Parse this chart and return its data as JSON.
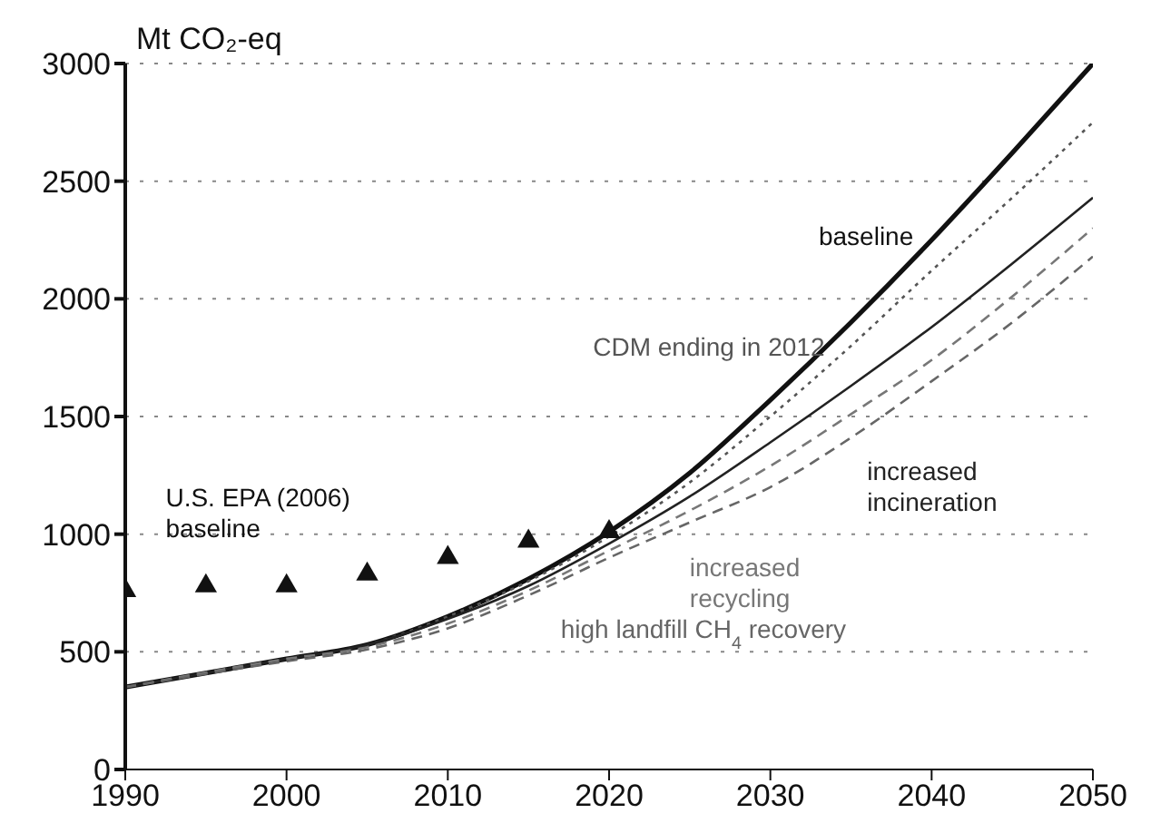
{
  "chart_data": {
    "type": "line",
    "ylabel": "Mt CO₂-eq",
    "xlim": [
      1990,
      2050
    ],
    "xticks": [
      1990,
      2000,
      2010,
      2020,
      2030,
      2040,
      2050
    ],
    "ylim": [
      0,
      3000
    ],
    "yticks": [
      0,
      500,
      1000,
      1500,
      2000,
      2500,
      3000
    ],
    "grid": "y",
    "series": [
      {
        "name": "baseline",
        "color": "#111111",
        "line_style": "solid",
        "marker": "none",
        "x": [
          1990,
          2000,
          2005,
          2010,
          2015,
          2020,
          2025,
          2030,
          2035,
          2040,
          2045,
          2050
        ],
        "values": [
          350,
          470,
          530,
          650,
          810,
          1010,
          1260,
          1570,
          1900,
          2250,
          2620,
          3000
        ]
      },
      {
        "name": "CDM ending in 2012",
        "color": "#555555",
        "line_style": "dotted",
        "marker": "none",
        "x": [
          1990,
          2000,
          2005,
          2010,
          2015,
          2020,
          2025,
          2030,
          2035,
          2040,
          2045,
          2050
        ],
        "values": [
          350,
          470,
          530,
          650,
          800,
          990,
          1220,
          1500,
          1800,
          2120,
          2430,
          2750
        ]
      },
      {
        "name": "increased incineration",
        "color": "#222222",
        "line_style": "solid",
        "marker": "none",
        "x": [
          1990,
          2000,
          2005,
          2010,
          2015,
          2020,
          2025,
          2030,
          2035,
          2040,
          2045,
          2050
        ],
        "values": [
          350,
          470,
          530,
          640,
          780,
          960,
          1160,
          1390,
          1630,
          1880,
          2150,
          2430
        ]
      },
      {
        "name": "increased recycling",
        "color": "#777777",
        "line_style": "dashed",
        "marker": "none",
        "x": [
          1990,
          2000,
          2005,
          2010,
          2015,
          2020,
          2025,
          2030,
          2035,
          2040,
          2045,
          2050
        ],
        "values": [
          350,
          470,
          520,
          620,
          760,
          930,
          1100,
          1290,
          1510,
          1740,
          2010,
          2300
        ]
      },
      {
        "name": "high landfill CH$_{4}$ recovery",
        "color": "#666666",
        "line_style": "dashed",
        "marker": "none",
        "x": [
          1990,
          2000,
          2005,
          2010,
          2015,
          2020,
          2025,
          2030,
          2035,
          2040,
          2045,
          2050
        ],
        "values": [
          350,
          460,
          510,
          600,
          740,
          900,
          1050,
          1200,
          1410,
          1650,
          1900,
          2180
        ]
      },
      {
        "name": "U.S. EPA (2006) baseline",
        "type": "scatter",
        "color": "#111111",
        "marker": "triangle",
        "x": [
          1990,
          1995,
          2000,
          2005,
          2010,
          2015,
          2020
        ],
        "values": [
          760,
          780,
          780,
          830,
          900,
          970,
          1010
        ]
      }
    ]
  }
}
